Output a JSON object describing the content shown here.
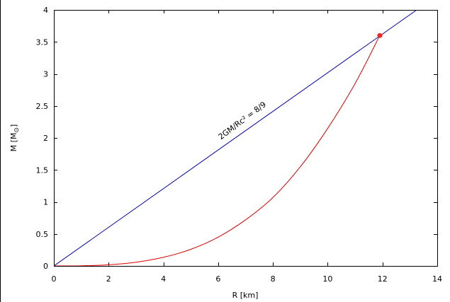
{
  "chart_data": {
    "type": "line",
    "title": "",
    "xlabel": "R [km]",
    "ylabel_main": "M [M",
    "ylabel_sub": "⊙",
    "ylabel_close": "]",
    "xlim": [
      0,
      14
    ],
    "ylim": [
      0,
      4
    ],
    "xticks": [
      0,
      2,
      4,
      6,
      8,
      10,
      12,
      14
    ],
    "yticks": [
      0,
      0.5,
      1,
      1.5,
      2,
      2.5,
      3,
      3.5,
      4
    ],
    "xtick_labels": [
      "0",
      "2",
      "4",
      "6",
      "8",
      "10",
      "12",
      "14"
    ],
    "ytick_labels": [
      "0",
      "0.5",
      "1",
      "1.5",
      "2",
      "2.5",
      "3",
      "3.5",
      "4"
    ],
    "grid": false,
    "series": [
      {
        "kind": "line",
        "color": "#0000b4",
        "x": [
          0,
          13.25
        ],
        "y": [
          0,
          4.0
        ]
      },
      {
        "kind": "curve",
        "color": "#e00000",
        "x": [
          0,
          1,
          2,
          3,
          4,
          5,
          6,
          7,
          8,
          9,
          10,
          11,
          11.9
        ],
        "y": [
          0,
          0.002,
          0.018,
          0.058,
          0.135,
          0.26,
          0.45,
          0.72,
          1.07,
          1.55,
          2.15,
          2.85,
          3.6
        ]
      }
    ],
    "highlight_point": {
      "x": 11.9,
      "y": 3.6,
      "color": "#ff2020"
    },
    "annotation": {
      "text": "2GM/Rc² = 8/9",
      "x": 6.1,
      "y": 1.97,
      "angle_deg": -37
    }
  }
}
